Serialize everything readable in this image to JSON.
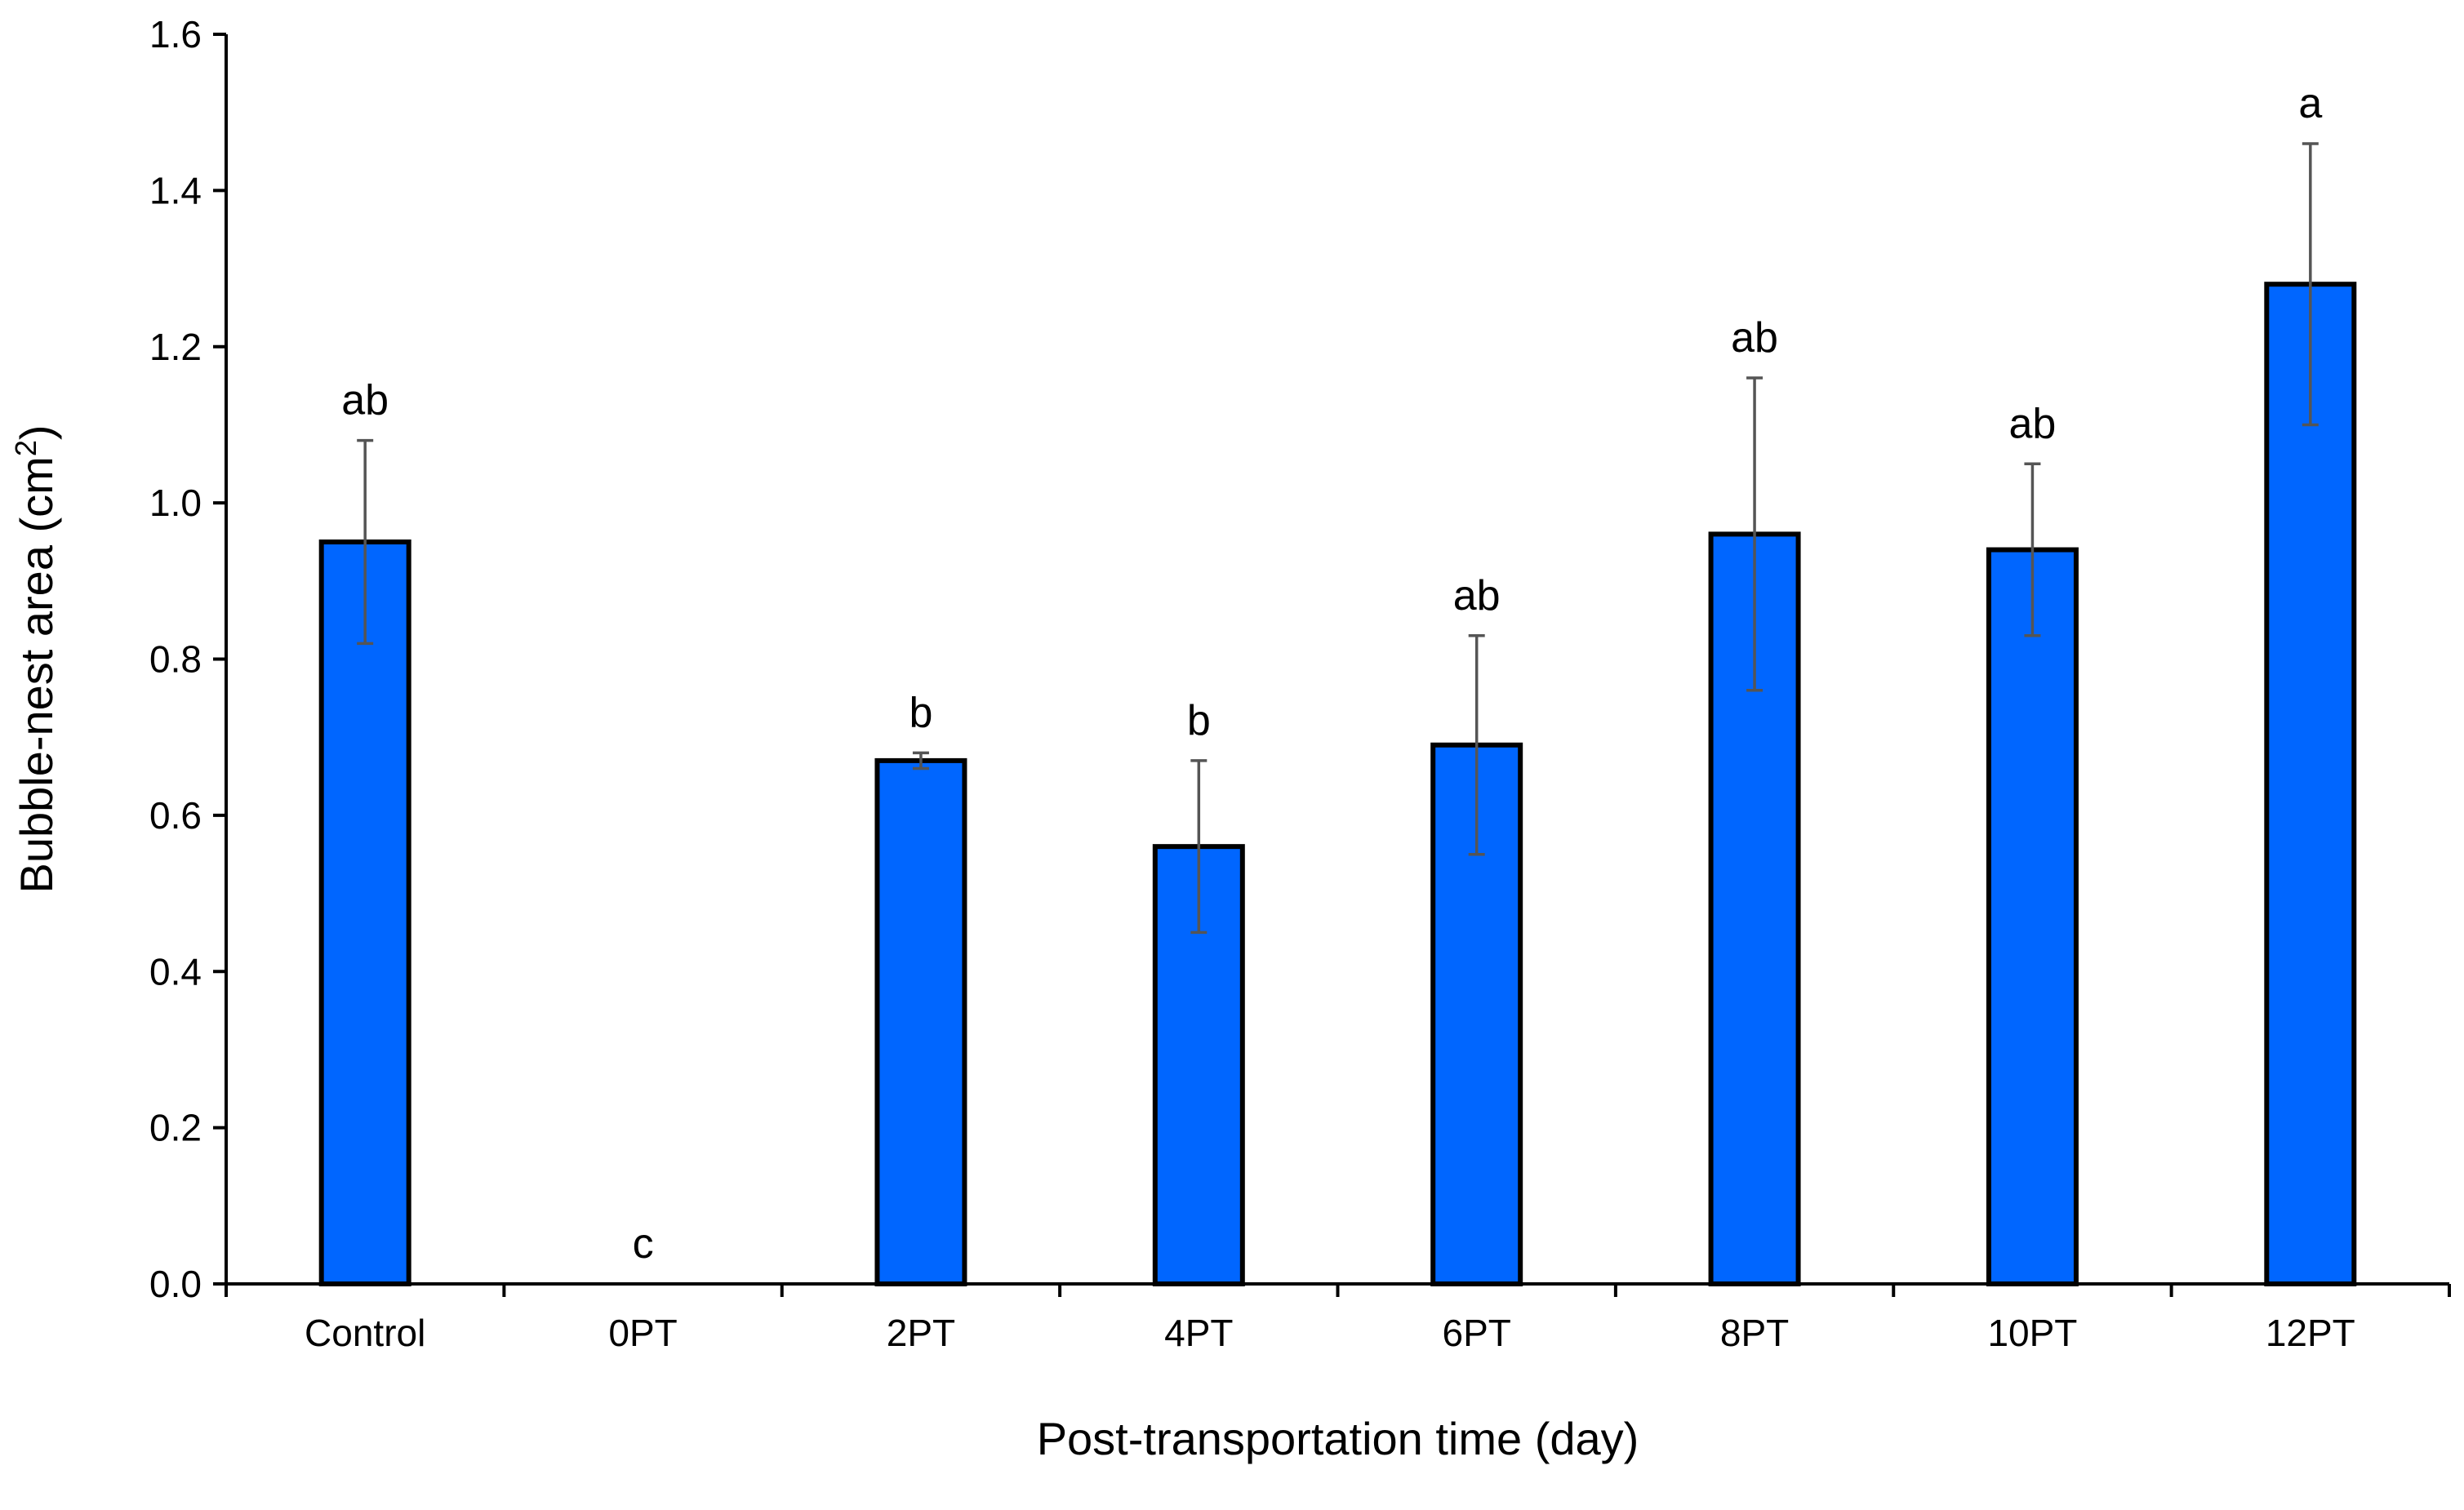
{
  "chart_data": {
    "type": "bar",
    "categories": [
      "Control",
      "0PT",
      "2PT",
      "4PT",
      "6PT",
      "8PT",
      "10PT",
      "12PT"
    ],
    "values": [
      0.95,
      0.0,
      0.67,
      0.56,
      0.69,
      0.96,
      0.94,
      1.28
    ],
    "error": [
      0.13,
      0.0,
      0.01,
      0.11,
      0.14,
      0.2,
      0.11,
      0.18
    ],
    "significance_labels": [
      "ab",
      "c",
      "b",
      "b",
      "ab",
      "ab",
      "ab",
      "a"
    ],
    "xlabel": "Post-transportation time (day)",
    "ylabel_main": "Bubble-nest area (cm",
    "ylabel_sup": "2",
    "ylabel_end": ")",
    "ylim": [
      0,
      1.6
    ],
    "yticks": [
      "0.0",
      "0.2",
      "0.4",
      "0.6",
      "0.8",
      "1.0",
      "1.2",
      "1.4",
      "1.6"
    ],
    "bar_color": "#0066FF",
    "grid": false,
    "legend": "none"
  }
}
